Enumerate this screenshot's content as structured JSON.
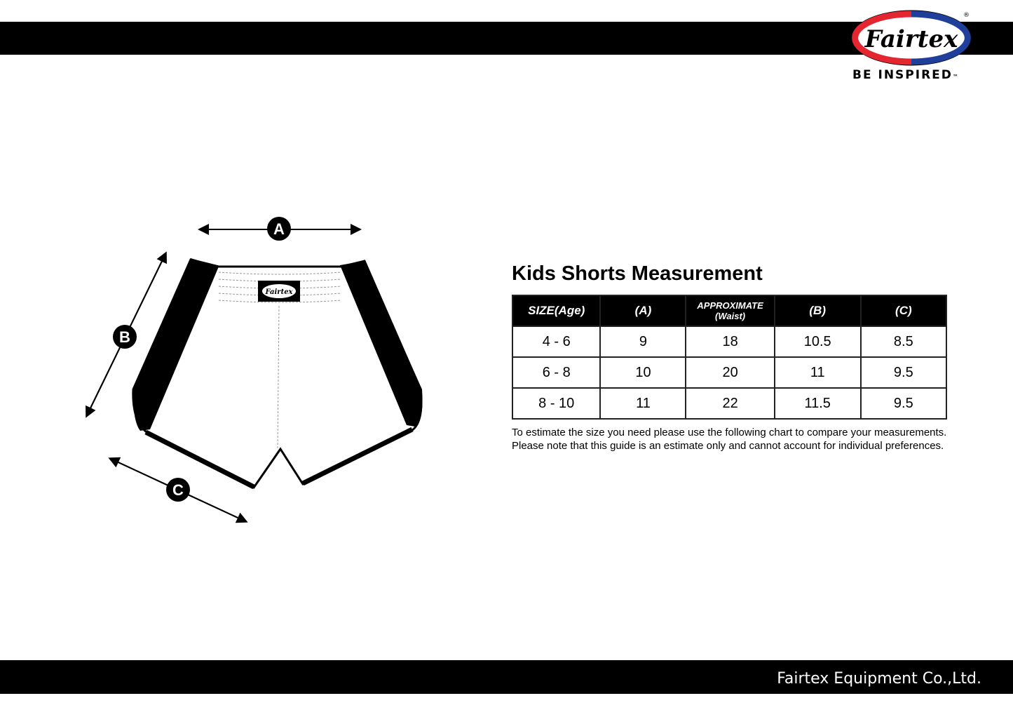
{
  "brand": {
    "logo_text": "Fairtex",
    "tagline": "BE INSPIRED",
    "tm": "™",
    "registered": "®",
    "colors": {
      "red": "#e3262f",
      "blue": "#1f3f9a"
    }
  },
  "footer": {
    "company": "Fairtex Equipment Co.,Ltd."
  },
  "diagram": {
    "labels": [
      "A",
      "B",
      "C"
    ],
    "waistband_logo": "Fairtex"
  },
  "chart": {
    "title": "Kids Shorts Measurement",
    "headers": [
      {
        "main": "SIZE(Age)"
      },
      {
        "main": "(A)"
      },
      {
        "main": "APPROXIMATE",
        "sub": "(Waist)"
      },
      {
        "main": "(B)"
      },
      {
        "main": "(C)"
      }
    ],
    "rows": [
      [
        "4 - 6",
        "9",
        "18",
        "10.5",
        "8.5"
      ],
      [
        "6 - 8",
        "10",
        "20",
        "11",
        "9.5"
      ],
      [
        "8 - 10",
        "11",
        "22",
        "11.5",
        "9.5"
      ]
    ],
    "notes": [
      "To estimate the size you need please use the following chart to compare your measurements.",
      "Please note that this guide is an estimate only and cannot account for individual preferences."
    ]
  }
}
